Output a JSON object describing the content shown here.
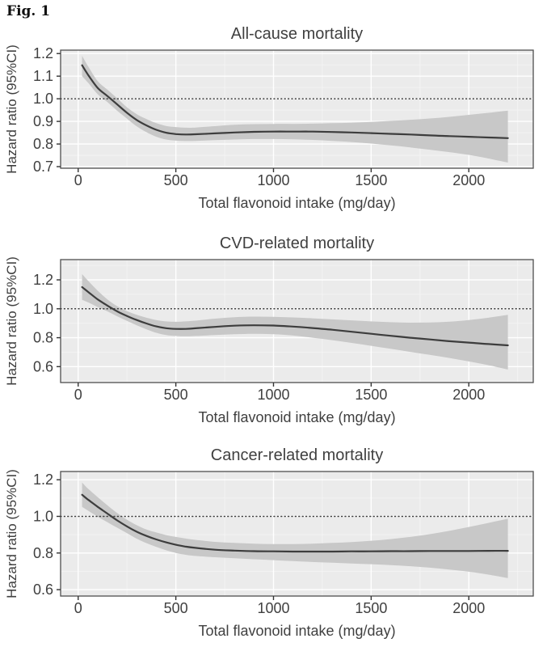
{
  "figure": {
    "label": "Fig. 1"
  },
  "colors": {
    "plot_background": "#ebebeb",
    "grid_major": "#ffffff",
    "grid_minor": "#f4f4f4",
    "ci_band": "#c8c8c8",
    "curve": "#3d3d3d",
    "reference_line": "#3f3f3f",
    "panel_border": "#4f4f4f",
    "tick": "#333333",
    "text": "#404040"
  },
  "chart_data": [
    {
      "type": "line",
      "title": "All-cause mortality",
      "xlabel": "Total flavonoid intake (mg/day)",
      "ylabel": "Hazard ratio (95%CI)",
      "legend_position": "none",
      "grid": true,
      "reference_line_y": 1.0,
      "xlim": [
        -90,
        2330
      ],
      "ylim": [
        0.693,
        1.215
      ],
      "x_ticks": [
        0,
        500,
        1000,
        1500,
        2000
      ],
      "x_tick_labels": [
        "0",
        "500",
        "1000",
        "1500",
        "2000"
      ],
      "y_ticks": [
        0.7,
        0.8,
        0.9,
        1.0,
        1.1,
        1.2
      ],
      "y_tick_labels": [
        "0.7",
        "0.8",
        "0.9",
        "1.0",
        "1.1",
        "1.2"
      ],
      "x": [
        20,
        50,
        100,
        150,
        200,
        250,
        300,
        350,
        400,
        450,
        500,
        550,
        600,
        700,
        800,
        900,
        1000,
        1100,
        1200,
        1300,
        1400,
        1500,
        1600,
        1700,
        1800,
        1900,
        2000,
        2100,
        2200
      ],
      "hazard_ratio": [
        1.148,
        1.107,
        1.048,
        1.012,
        0.975,
        0.938,
        0.906,
        0.882,
        0.863,
        0.85,
        0.844,
        0.842,
        0.843,
        0.847,
        0.851,
        0.854,
        0.855,
        0.855,
        0.855,
        0.853,
        0.851,
        0.848,
        0.845,
        0.842,
        0.838,
        0.835,
        0.832,
        0.829,
        0.826
      ],
      "ci_lower": [
        1.1,
        1.072,
        1.02,
        0.985,
        0.947,
        0.912,
        0.878,
        0.852,
        0.832,
        0.82,
        0.815,
        0.813,
        0.814,
        0.817,
        0.82,
        0.822,
        0.822,
        0.821,
        0.818,
        0.814,
        0.809,
        0.802,
        0.794,
        0.785,
        0.775,
        0.764,
        0.752,
        0.736,
        0.718
      ],
      "ci_upper": [
        1.19,
        1.145,
        1.078,
        1.04,
        1.002,
        0.962,
        0.932,
        0.91,
        0.892,
        0.88,
        0.875,
        0.872,
        0.873,
        0.879,
        0.885,
        0.888,
        0.889,
        0.889,
        0.89,
        0.892,
        0.894,
        0.898,
        0.902,
        0.907,
        0.913,
        0.92,
        0.929,
        0.938,
        0.948
      ]
    },
    {
      "type": "line",
      "title": "CVD-related mortality",
      "xlabel": "Total flavonoid intake (mg/day)",
      "ylabel": "Hazard ratio (95%CI)",
      "legend_position": "none",
      "grid": true,
      "reference_line_y": 1.0,
      "xlim": [
        -90,
        2330
      ],
      "ylim": [
        0.49,
        1.34
      ],
      "x_ticks": [
        0,
        500,
        1000,
        1500,
        2000
      ],
      "x_tick_labels": [
        "0",
        "500",
        "1000",
        "1500",
        "2000"
      ],
      "y_ticks": [
        0.6,
        0.8,
        1.0,
        1.2
      ],
      "y_tick_labels": [
        "0.6",
        "0.8",
        "1.0",
        "1.2"
      ],
      "x": [
        20,
        50,
        100,
        150,
        200,
        250,
        300,
        350,
        400,
        450,
        500,
        550,
        600,
        700,
        800,
        900,
        1000,
        1100,
        1200,
        1300,
        1400,
        1500,
        1600,
        1700,
        1800,
        1900,
        2000,
        2100,
        2200
      ],
      "hazard_ratio": [
        1.15,
        1.118,
        1.065,
        1.022,
        0.982,
        0.95,
        0.922,
        0.898,
        0.878,
        0.866,
        0.861,
        0.861,
        0.865,
        0.875,
        0.883,
        0.886,
        0.884,
        0.877,
        0.867,
        0.855,
        0.841,
        0.827,
        0.813,
        0.8,
        0.788,
        0.776,
        0.766,
        0.756,
        0.747
      ],
      "ci_lower": [
        1.062,
        1.045,
        1.012,
        0.982,
        0.948,
        0.916,
        0.886,
        0.858,
        0.834,
        0.818,
        0.812,
        0.81,
        0.812,
        0.818,
        0.824,
        0.827,
        0.824,
        0.815,
        0.8,
        0.783,
        0.764,
        0.744,
        0.723,
        0.702,
        0.681,
        0.66,
        0.636,
        0.61,
        0.58
      ],
      "ci_upper": [
        1.24,
        1.195,
        1.125,
        1.065,
        1.018,
        0.984,
        0.958,
        0.938,
        0.922,
        0.913,
        0.91,
        0.913,
        0.918,
        0.932,
        0.942,
        0.946,
        0.944,
        0.94,
        0.934,
        0.927,
        0.92,
        0.913,
        0.907,
        0.904,
        0.905,
        0.911,
        0.922,
        0.938,
        0.958
      ]
    },
    {
      "type": "line",
      "title": "Cancer-related mortality",
      "xlabel": "Total flavonoid intake (mg/day)",
      "ylabel": "Hazard ratio (95%CI)",
      "legend_position": "none",
      "grid": true,
      "reference_line_y": 1.0,
      "xlim": [
        -90,
        2330
      ],
      "ylim": [
        0.565,
        1.245
      ],
      "x_ticks": [
        0,
        500,
        1000,
        1500,
        2000
      ],
      "x_tick_labels": [
        "0",
        "500",
        "1000",
        "1500",
        "2000"
      ],
      "y_ticks": [
        0.6,
        0.8,
        1.0,
        1.2
      ],
      "y_tick_labels": [
        "0.6",
        "0.8",
        "1.0",
        "1.2"
      ],
      "x": [
        20,
        50,
        100,
        150,
        200,
        250,
        300,
        350,
        400,
        450,
        500,
        550,
        600,
        700,
        800,
        900,
        1000,
        1100,
        1200,
        1300,
        1400,
        1500,
        1600,
        1700,
        1800,
        1900,
        2000,
        2100,
        2200
      ],
      "hazard_ratio": [
        1.118,
        1.092,
        1.052,
        1.015,
        0.978,
        0.945,
        0.916,
        0.893,
        0.874,
        0.858,
        0.845,
        0.835,
        0.828,
        0.818,
        0.813,
        0.81,
        0.809,
        0.808,
        0.808,
        0.808,
        0.809,
        0.809,
        0.81,
        0.81,
        0.811,
        0.811,
        0.811,
        0.812,
        0.812
      ],
      "ci_lower": [
        1.052,
        1.032,
        0.998,
        0.968,
        0.938,
        0.908,
        0.878,
        0.854,
        0.833,
        0.815,
        0.8,
        0.79,
        0.784,
        0.777,
        0.771,
        0.766,
        0.761,
        0.756,
        0.751,
        0.747,
        0.743,
        0.739,
        0.734,
        0.728,
        0.72,
        0.71,
        0.698,
        0.682,
        0.663
      ],
      "ci_upper": [
        1.185,
        1.152,
        1.105,
        1.06,
        1.018,
        0.982,
        0.952,
        0.928,
        0.912,
        0.898,
        0.888,
        0.879,
        0.872,
        0.861,
        0.855,
        0.851,
        0.849,
        0.849,
        0.851,
        0.855,
        0.86,
        0.867,
        0.876,
        0.888,
        0.903,
        0.921,
        0.942,
        0.964,
        0.987
      ]
    }
  ]
}
